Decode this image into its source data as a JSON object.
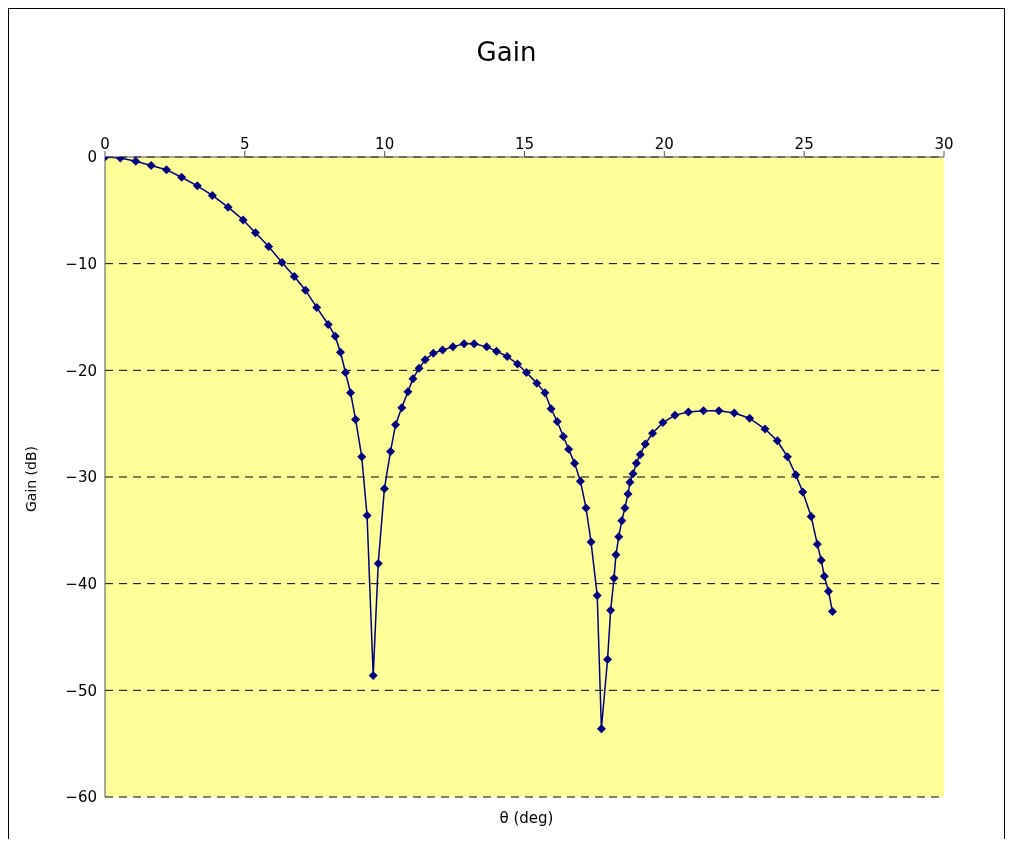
{
  "chart_data": {
    "type": "line",
    "title": "Gain",
    "xlabel": "θ (deg)",
    "ylabel": "Gain (dB)",
    "x": [
      0,
      0.55,
      1.1,
      1.65,
      2.2,
      2.74,
      3.3,
      3.84,
      4.4,
      4.94,
      5.38,
      5.85,
      6.33,
      6.77,
      7.17,
      7.57,
      7.98,
      8.23,
      8.42,
      8.6,
      8.78,
      8.96,
      9.18,
      9.37,
      9.59,
      9.77,
      9.99,
      10.21,
      10.39,
      10.61,
      10.83,
      11.01,
      11.23,
      11.45,
      11.74,
      12.07,
      12.44,
      12.84,
      13.2,
      13.65,
      14.0,
      14.38,
      14.75,
      15.07,
      15.44,
      15.73,
      15.95,
      16.17,
      16.39,
      16.58,
      16.79,
      17.0,
      17.2,
      17.38,
      17.6,
      17.75,
      17.97,
      18.08,
      18.2,
      18.27,
      18.37,
      18.48,
      18.59,
      18.7,
      18.77,
      18.88,
      19.0,
      19.14,
      19.32,
      19.58,
      19.95,
      20.38,
      20.86,
      21.4,
      21.95,
      22.5,
      23.05,
      23.6,
      24.04,
      24.4,
      24.7,
      24.95,
      25.25,
      25.47,
      25.61,
      25.72,
      25.87,
      26.01
    ],
    "series": [
      {
        "color": "#000080",
        "values": [
          0,
          -0.1,
          -0.4,
          -0.8,
          -1.2,
          -1.9,
          -2.7,
          -3.6,
          -4.7,
          -5.9,
          -7.1,
          -8.4,
          -9.9,
          -11.2,
          -12.5,
          -14.1,
          -15.7,
          -16.8,
          -18.3,
          -20.2,
          -22.1,
          -24.6,
          -28.1,
          -33.6,
          -48.6,
          -38.1,
          -31.1,
          -27.6,
          -25.1,
          -23.5,
          -22.0,
          -20.8,
          -19.8,
          -19.0,
          -18.4,
          -18.1,
          -17.8,
          -17.5,
          -17.5,
          -17.8,
          -18.2,
          -18.7,
          -19.4,
          -20.2,
          -21.2,
          -22.1,
          -23.6,
          -24.8,
          -26.2,
          -27.4,
          -28.7,
          -30.4,
          -32.9,
          -36.1,
          -41.1,
          -53.6,
          -47.1,
          -42.5,
          -39.5,
          -37.3,
          -35.6,
          -34.1,
          -32.9,
          -31.6,
          -30.5,
          -29.7,
          -28.7,
          -27.9,
          -26.9,
          -25.9,
          -24.9,
          -24.2,
          -23.9,
          -23.8,
          -23.8,
          -24.0,
          -24.5,
          -25.5,
          -26.6,
          -28.1,
          -29.8,
          -31.4,
          -33.7,
          -36.3,
          -37.8,
          -39.3,
          -40.7,
          -42.6
        ]
      }
    ],
    "xlim": [
      0,
      30
    ],
    "xticks": [
      0,
      5,
      10,
      15,
      20,
      25,
      30
    ],
    "ylim": [
      -60,
      0
    ],
    "yticks": [
      -60,
      -50,
      -40,
      -30,
      -20,
      -10,
      0
    ],
    "grid": "y",
    "legend": false,
    "marker": "diamond",
    "line_style": "solid"
  }
}
